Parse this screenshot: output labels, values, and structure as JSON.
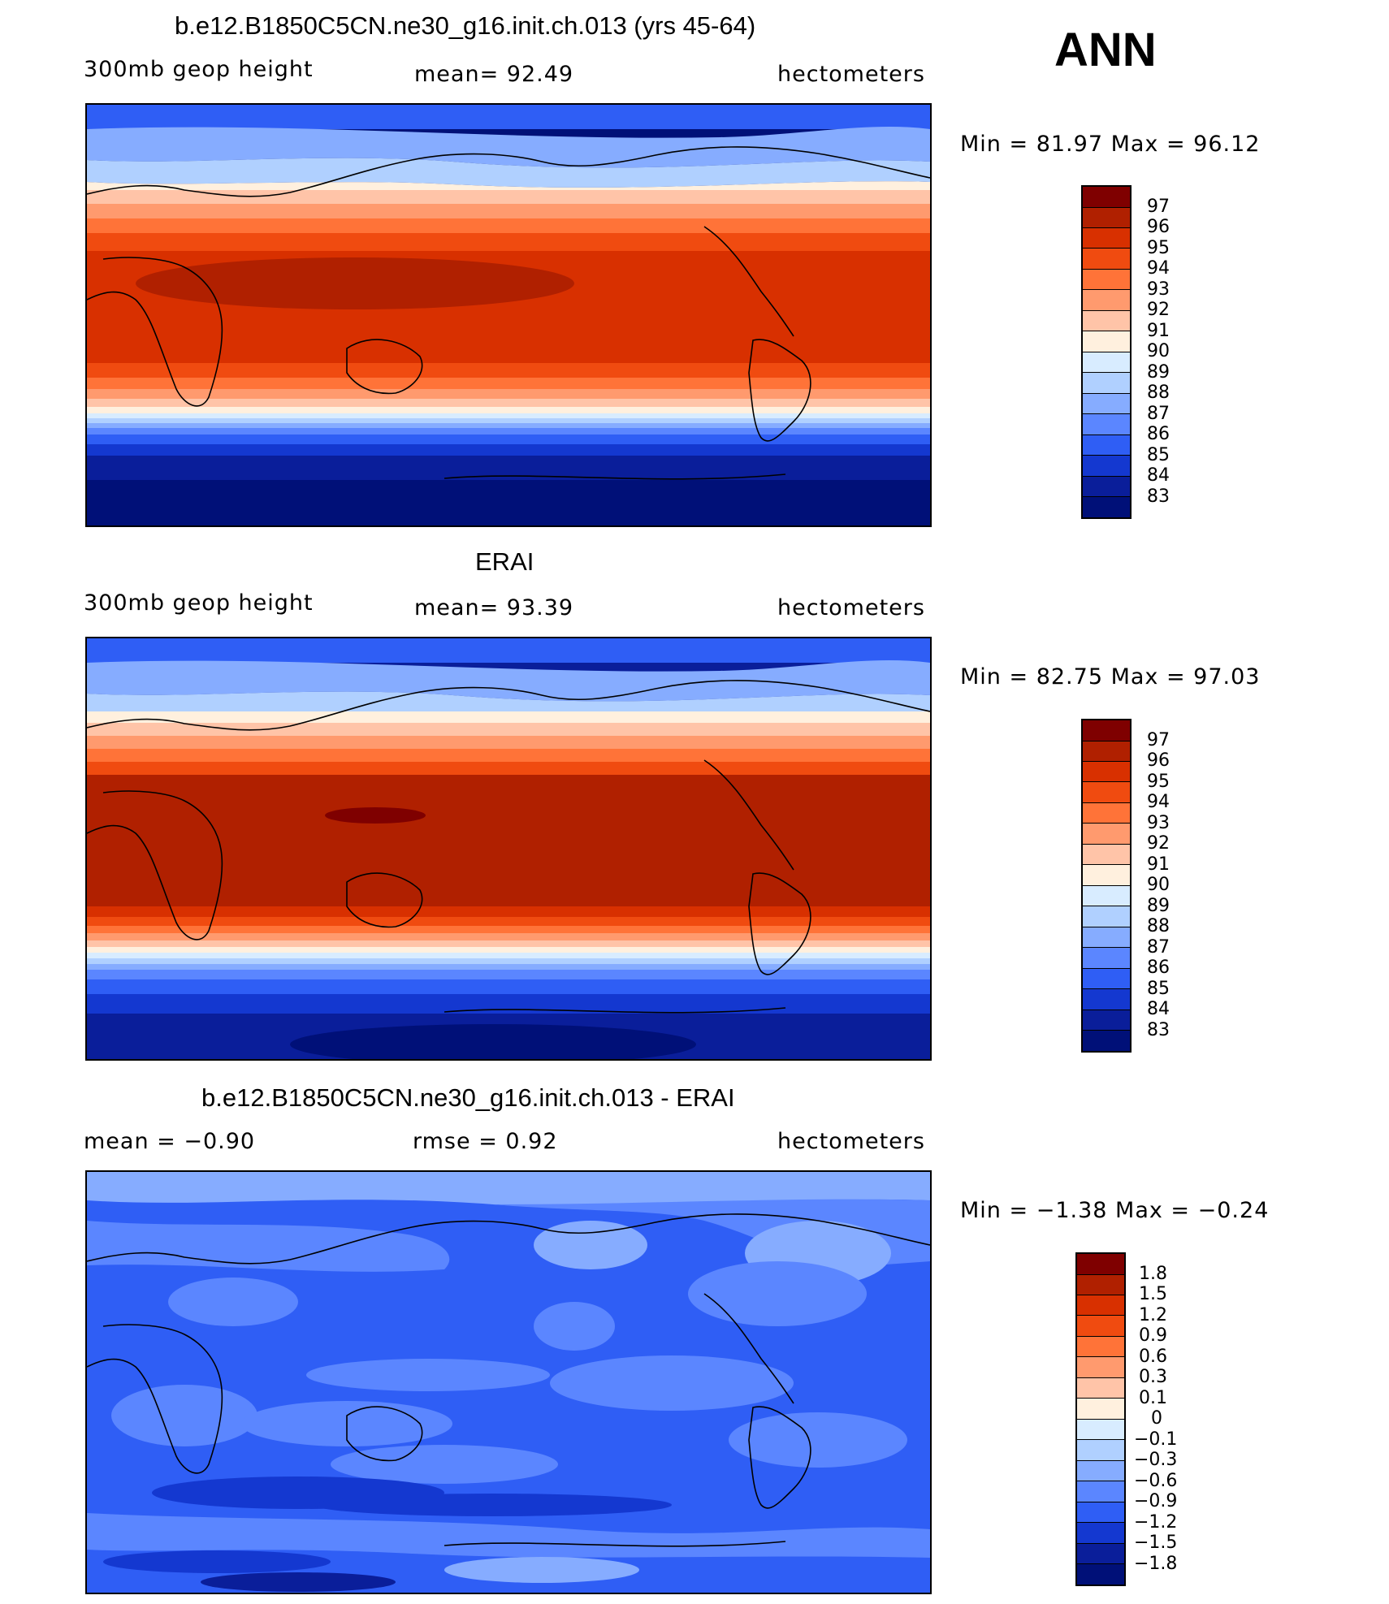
{
  "season": "ANN",
  "panels": [
    {
      "id": "model",
      "title": "b.e12.B1850C5CN.ne30_g16.init.ch.013 (yrs 45-64)",
      "left_label": "300mb  geop  height",
      "center_label": "mean=   92.49",
      "right_label": "hectometers",
      "minmax": "Min =   81.97  Max =   96.12",
      "colorbar_labels": [
        "97",
        "96",
        "95",
        "94",
        "93",
        "92",
        "91",
        "90",
        "89",
        "88",
        "87",
        "86",
        "85",
        "84",
        "83"
      ]
    },
    {
      "id": "obs",
      "title": "ERAI",
      "left_label": "300mb  geop  height",
      "center_label": "mean=   93.39",
      "right_label": "hectometers",
      "minmax": "Min =   82.75  Max =   97.03",
      "colorbar_labels": [
        "97",
        "96",
        "95",
        "94",
        "93",
        "92",
        "91",
        "90",
        "89",
        "88",
        "87",
        "86",
        "85",
        "84",
        "83"
      ]
    },
    {
      "id": "diff",
      "title": "b.e12.B1850C5CN.ne30_g16.init.ch.013 - ERAI",
      "left_label": "mean  =   −0.90",
      "center_label": "rmse  =     0.92",
      "right_label": "hectometers",
      "minmax": "Min =   −1.38  Max =   −0.24",
      "colorbar_labels": [
        "1.8",
        "1.5",
        "1.2",
        "0.9",
        "0.6",
        "0.3",
        "0.1",
        "0",
        "−0.1",
        "−0.3",
        "−0.6",
        "−0.9",
        "−1.2",
        "−1.5",
        "−1.8"
      ]
    }
  ],
  "colors": {
    "palette": [
      "#7f0000",
      "#b02000",
      "#d83000",
      "#f04b10",
      "#ff7338",
      "#ff9a6e",
      "#ffc4a8",
      "#fff0de",
      "#d8ecff",
      "#b0d0ff",
      "#86acff",
      "#5b86ff",
      "#2f5ef5",
      "#1438d0",
      "#0a1e9a",
      "#001078"
    ]
  }
}
